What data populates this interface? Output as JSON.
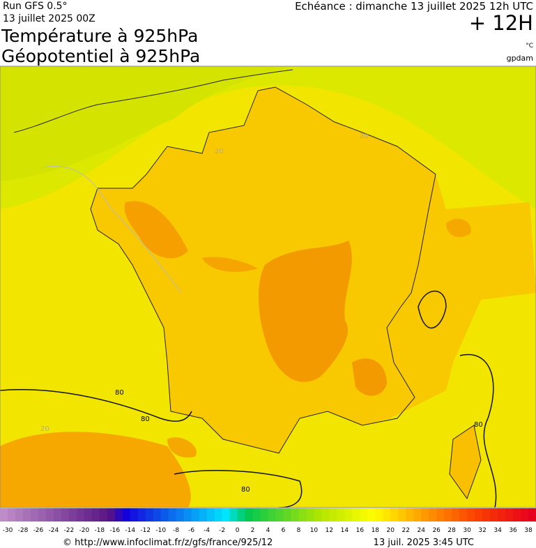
{
  "header": {
    "run": "Run GFS 0.5°",
    "date": "13 juillet 2025 00Z",
    "title1": "Température à 925hPa",
    "title2": "Géopotentiel à 925hPa",
    "echeance": "Echéance : dimanche 13 juillet 2025 12h UTC",
    "lead": "+ 12H",
    "unit1": "°C",
    "unit2": "gpdam"
  },
  "contours": [
    "80",
    "80",
    "80",
    "80",
    "20",
    "20",
    "20"
  ],
  "colorbar": {
    "labels": [
      -30,
      -28,
      -26,
      -24,
      -22,
      -20,
      -18,
      -16,
      -14,
      -12,
      -10,
      -8,
      -6,
      -4,
      -2,
      0,
      2,
      4,
      6,
      8,
      10,
      12,
      14,
      16,
      18,
      20,
      22,
      24,
      26,
      28,
      30,
      32,
      34,
      36,
      38
    ]
  },
  "footer": {
    "source": "© http://www.infoclimat.fr/z/gfs/france/925/12",
    "stamp": "13 juil. 2025  3:45 UTC"
  }
}
